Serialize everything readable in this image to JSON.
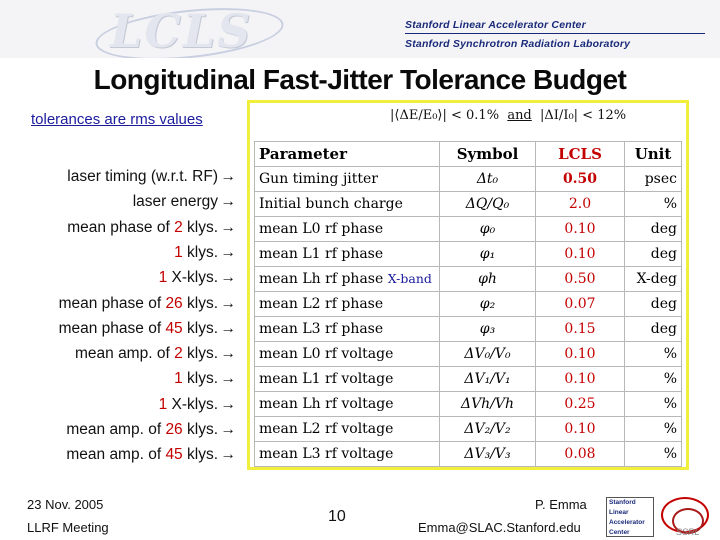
{
  "header": {
    "logo_text": "LCLS",
    "institution_line1": "Stanford Linear Accelerator Center",
    "institution_line2": "Stanford Synchrotron Radiation Laboratory"
  },
  "title": "Longitudinal Fast-Jitter Tolerance Budget",
  "tolerance_note": "tolerances are rms values",
  "tolerance_limits": {
    "energy": "|⟨ΔE/E₀⟩| < 0.1%",
    "conjunction": "and",
    "current": "|ΔI/I₀| < 12%"
  },
  "table": {
    "headers": {
      "parameter": "Parameter",
      "symbol": "Symbol",
      "lcls": "LCLS",
      "unit": "Unit"
    },
    "rows": [
      {
        "parameter": "Gun timing jitter",
        "extra": "",
        "symbol": "Δt₀",
        "lcls": "0.50",
        "unit": "psec"
      },
      {
        "parameter": "Initial bunch charge",
        "extra": "",
        "symbol": "ΔQ/Q₀",
        "lcls": "2.0",
        "unit": "%"
      },
      {
        "parameter": "mean L0 rf phase",
        "extra": "",
        "symbol": "φ₀",
        "lcls": "0.10",
        "unit": "deg"
      },
      {
        "parameter": "mean L1 rf phase",
        "extra": "",
        "symbol": "φ₁",
        "lcls": "0.10",
        "unit": "deg"
      },
      {
        "parameter": "mean Lh rf phase",
        "extra": "X-band",
        "symbol": "φh",
        "lcls": "0.50",
        "unit": "X-deg"
      },
      {
        "parameter": "mean L2 rf phase",
        "extra": "",
        "symbol": "φ₂",
        "lcls": "0.07",
        "unit": "deg"
      },
      {
        "parameter": "mean L3 rf phase",
        "extra": "",
        "symbol": "φ₃",
        "lcls": "0.15",
        "unit": "deg"
      },
      {
        "parameter": "mean L0 rf voltage",
        "extra": "",
        "symbol": "ΔV₀/V₀",
        "lcls": "0.10",
        "unit": "%"
      },
      {
        "parameter": "mean L1 rf voltage",
        "extra": "",
        "symbol": "ΔV₁/V₁",
        "lcls": "0.10",
        "unit": "%"
      },
      {
        "parameter": "mean Lh rf voltage",
        "extra": "",
        "symbol": "ΔVh/Vh",
        "lcls": "0.25",
        "unit": "%"
      },
      {
        "parameter": "mean L2 rf voltage",
        "extra": "",
        "symbol": "ΔV₂/V₂",
        "lcls": "0.10",
        "unit": "%"
      },
      {
        "parameter": "mean L3 rf voltage",
        "extra": "",
        "symbol": "ΔV₃/V₃",
        "lcls": "0.08",
        "unit": "%"
      }
    ]
  },
  "labels": [
    {
      "pre": "laser timing (w.r.t. RF)",
      "hl": "",
      "post": ""
    },
    {
      "pre": "laser energy",
      "hl": "",
      "post": ""
    },
    {
      "pre": "mean phase of ",
      "hl": "2",
      "post": " klys."
    },
    {
      "pre": "",
      "hl": "1",
      "post": " klys."
    },
    {
      "pre": "",
      "hl": "1",
      "post": " X-klys."
    },
    {
      "pre": "mean phase of ",
      "hl": "26",
      "post": " klys."
    },
    {
      "pre": "mean phase of ",
      "hl": "45",
      "post": " klys."
    },
    {
      "pre": "mean amp. of ",
      "hl": "2",
      "post": " klys."
    },
    {
      "pre": "",
      "hl": "1",
      "post": " klys."
    },
    {
      "pre": "",
      "hl": "1",
      "post": " X-klys."
    },
    {
      "pre": "mean amp. of ",
      "hl": "26",
      "post": " klys."
    },
    {
      "pre": "mean amp. of ",
      "hl": "45",
      "post": " klys."
    }
  ],
  "arrow_glyph": "→",
  "footer": {
    "date": "23 Nov. 2005",
    "meeting": "LLRF Meeting",
    "page": "10",
    "author": "P. Emma",
    "email": "Emma@SLAC.Stanford.edu",
    "slac_logo": [
      "Stanford",
      "Linear",
      "Accelerator",
      "Center"
    ],
    "ring_logo_text": "SSRL"
  },
  "colors": {
    "highlight": "#c40000",
    "link": "#1b1b9c",
    "panel_border": "#f2ee3c"
  }
}
